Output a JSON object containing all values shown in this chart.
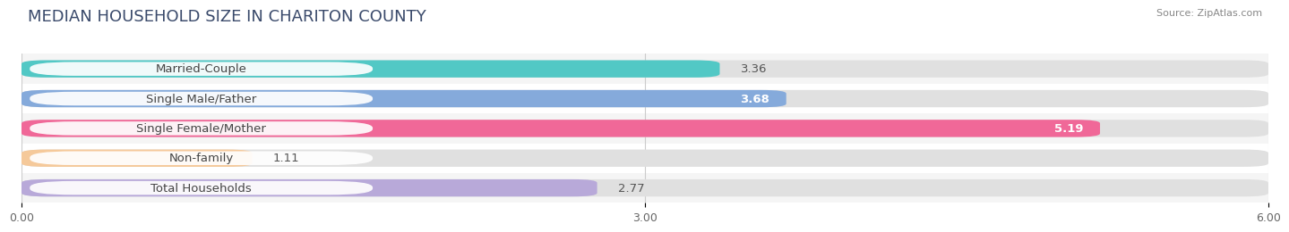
{
  "title": "MEDIAN HOUSEHOLD SIZE IN CHARITON COUNTY",
  "source": "Source: ZipAtlas.com",
  "categories": [
    "Married-Couple",
    "Single Male/Father",
    "Single Female/Mother",
    "Non-family",
    "Total Households"
  ],
  "values": [
    3.36,
    3.68,
    5.19,
    1.11,
    2.77
  ],
  "bar_colors": [
    "#52C8C5",
    "#85AADB",
    "#F06898",
    "#F5C99A",
    "#B8A9D9"
  ],
  "value_inside": [
    false,
    true,
    true,
    false,
    false
  ],
  "xlim": [
    0,
    6.0
  ],
  "xticks": [
    0.0,
    3.0,
    6.0
  ],
  "xtick_labels": [
    "0.00",
    "3.00",
    "6.00"
  ],
  "background_color": "#ffffff",
  "bar_bg_color": "#eeeeee",
  "row_bg_colors": [
    "#f5f5f5",
    "#ffffff"
  ],
  "title_fontsize": 13,
  "label_fontsize": 9.5,
  "value_fontsize": 9.5,
  "bar_height": 0.58
}
